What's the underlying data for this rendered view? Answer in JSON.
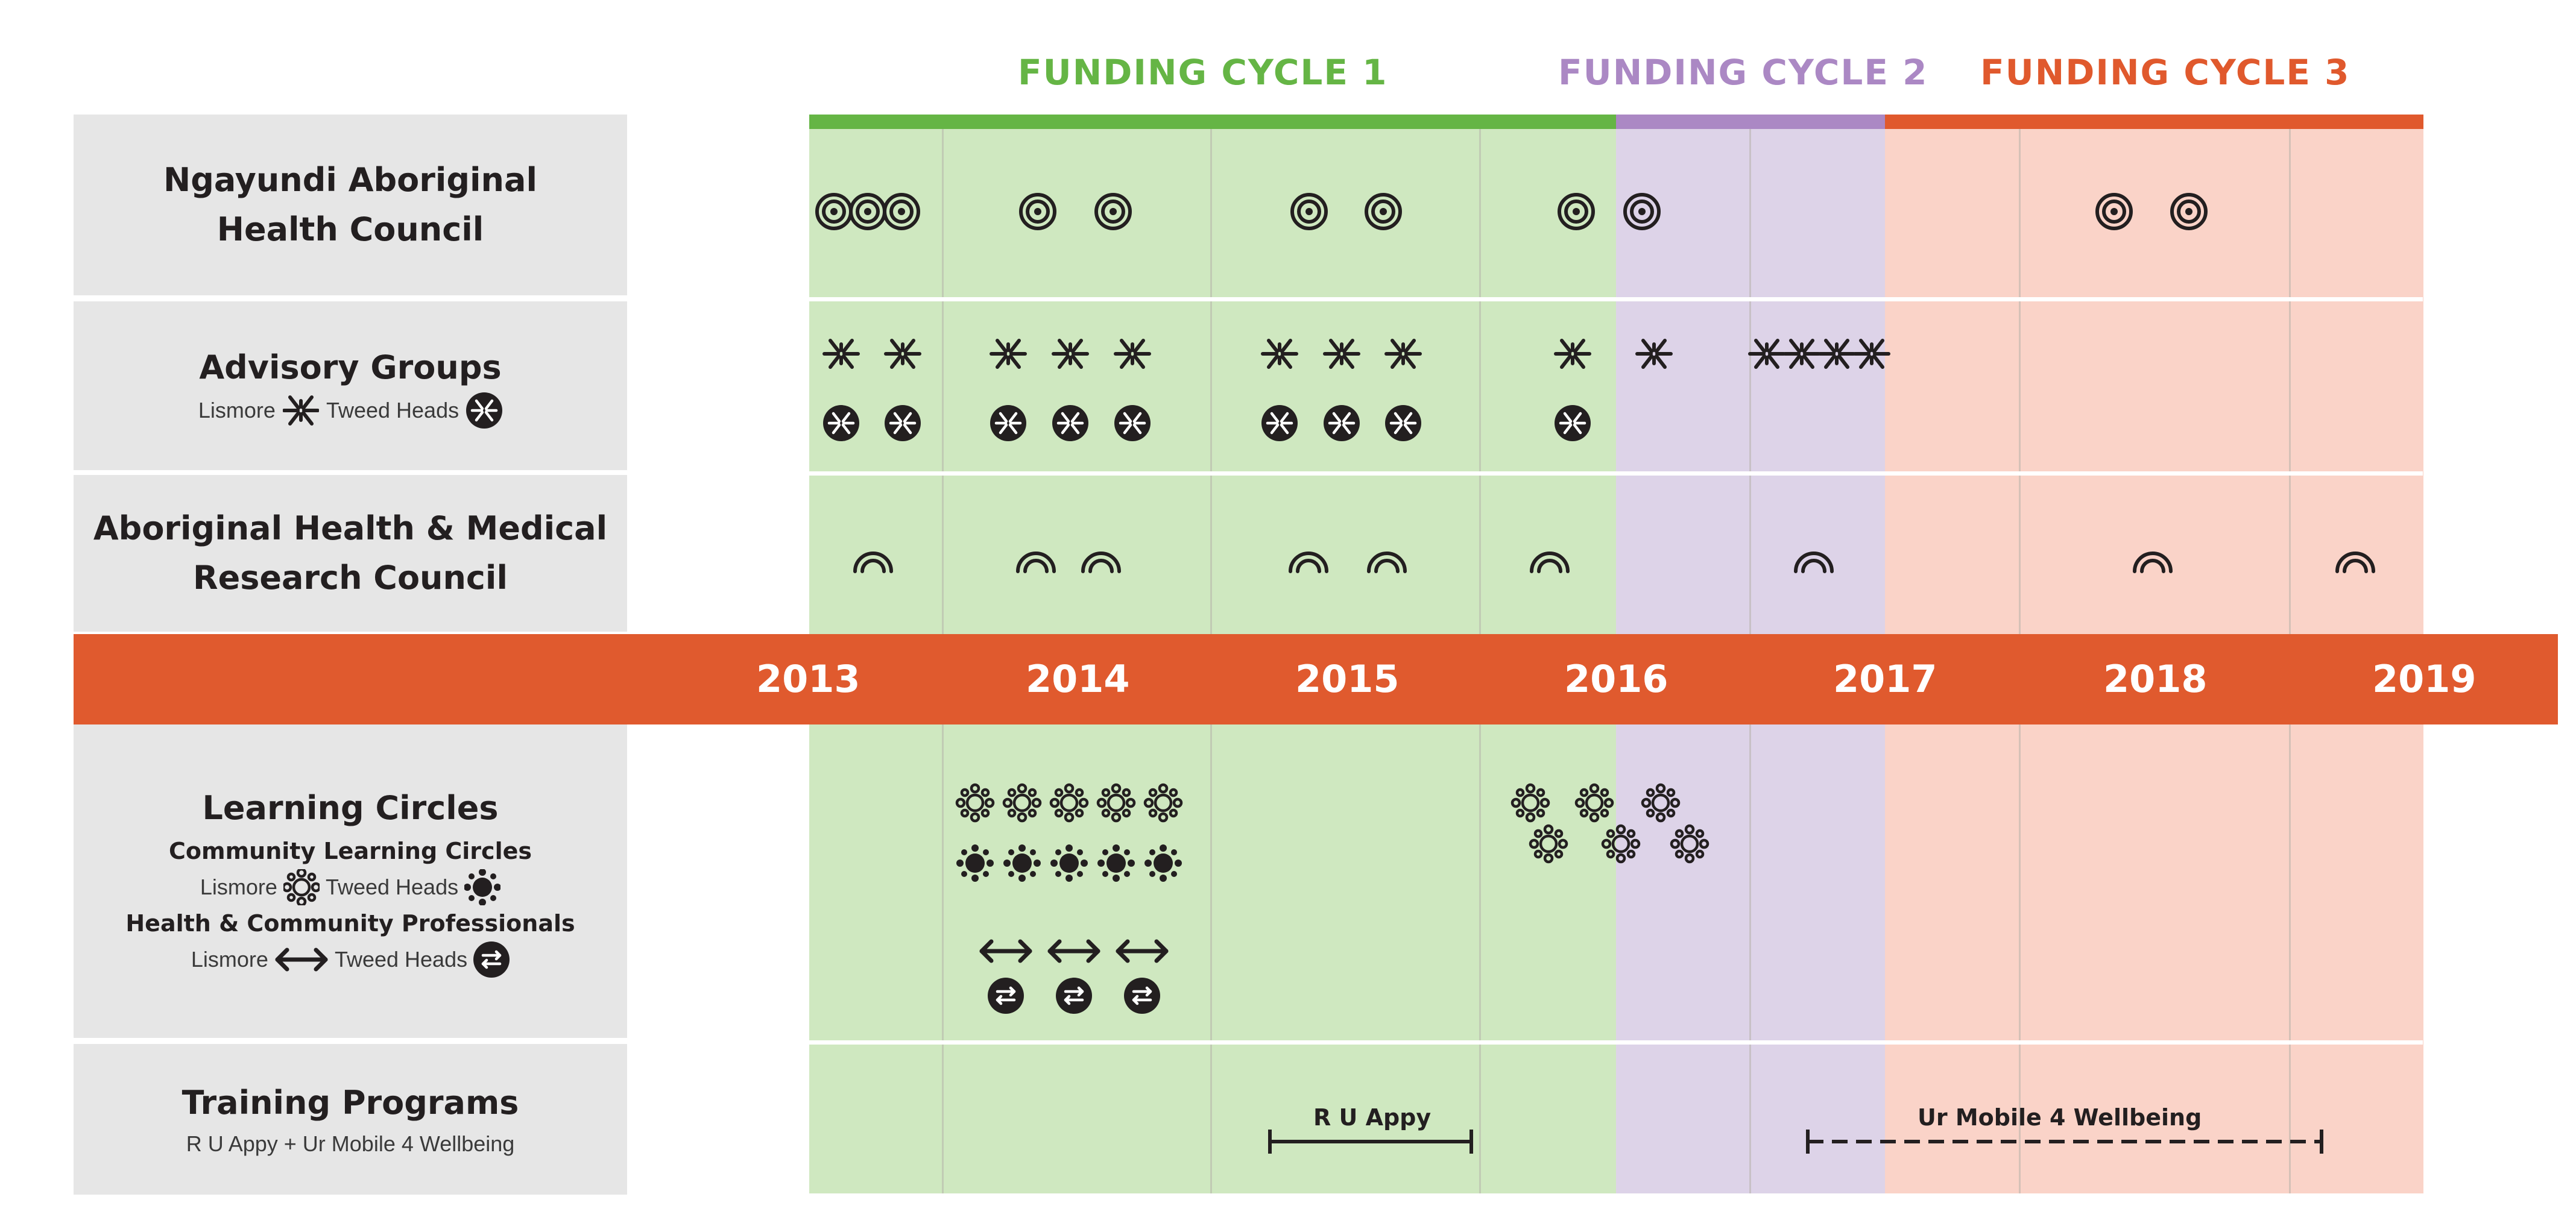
{
  "funding_cycles": [
    {
      "label": "FUNDING CYCLE 1",
      "color": "#65b545"
    },
    {
      "label": "FUNDING CYCLE 2",
      "color": "#ab88c4"
    },
    {
      "label": "FUNDING CYCLE 3",
      "color": "#e0592d"
    }
  ],
  "colors": {
    "cycle1_bg": "#cfe8c0",
    "cycle2_bg": "#ddd3e8",
    "cycle3_bg": "#fad3c8",
    "year_band": "#e05a2e",
    "label_bg": "#e6e6e6",
    "icon": "#231f20"
  },
  "years": [
    "2013",
    "2014",
    "2015",
    "2016",
    "2017",
    "2018",
    "2019"
  ],
  "rows": {
    "council": {
      "title_line1": "Ngayundi Aboriginal",
      "title_line2": "Health Council",
      "icon": "concentric-circles-icon"
    },
    "advisory": {
      "title": "Advisory Groups",
      "legend_lismore": "Lismore",
      "legend_tweed": "Tweed Heads",
      "icon_lismore": "sparkle-icon",
      "icon_tweed": "sparkle-badge-icon"
    },
    "research": {
      "title_line1": "Aboriginal Health & Medical",
      "title_line2": "Research Council",
      "icon": "rainbow-arch-icon"
    },
    "learning": {
      "title": "Learning Circles",
      "sub1": "Community Learning Circles",
      "legend1_lismore": "Lismore",
      "legend1_tweed": "Tweed Heads",
      "sub2": "Health & Community Professionals",
      "legend2_lismore": "Lismore",
      "legend2_tweed": "Tweed Heads",
      "icon_lismore": "flower-outline-icon",
      "icon_tweed": "flower-filled-icon",
      "icon_prof_lismore": "double-arrow-icon",
      "icon_prof_tweed": "double-arrow-badge-icon"
    },
    "training": {
      "title": "Training Programs",
      "subtitle": "R U Appy + Ur Mobile 4 Wellbeing",
      "program1": "R U Appy",
      "program2": "Ur Mobile 4 Wellbeing"
    }
  }
}
